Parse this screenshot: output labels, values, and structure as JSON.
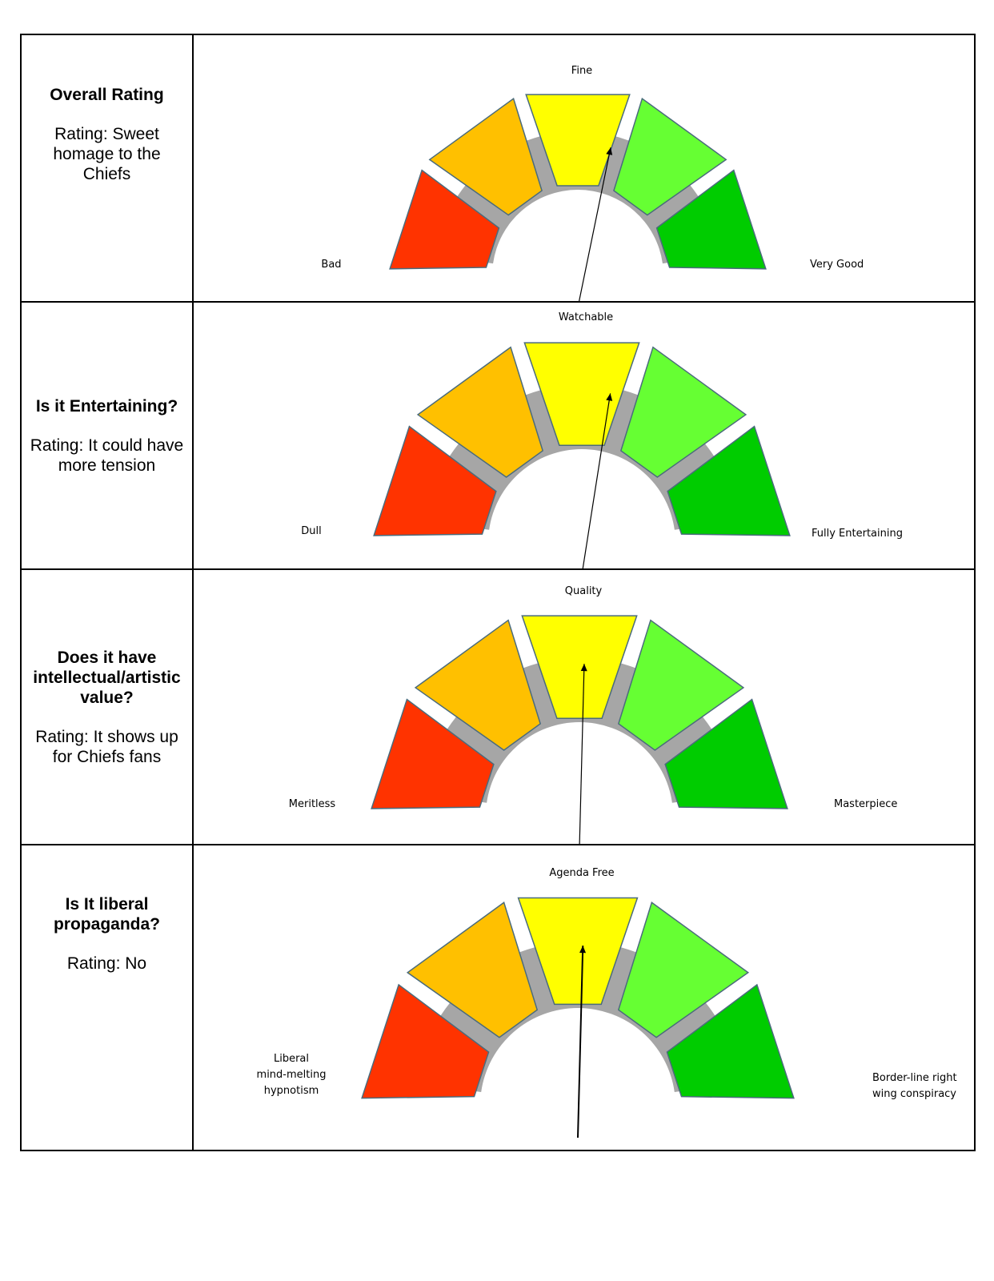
{
  "colors": {
    "border": "#000000",
    "track": "#a6a6a6",
    "segments": [
      "#ff3300",
      "#ffc000",
      "#ffff00",
      "#66ff33",
      "#00cc00"
    ],
    "needle": "#000000"
  },
  "chart_data": [
    {
      "type": "gauge",
      "question": "Overall Rating",
      "rating_text": "Rating: Sweet homage to the Chiefs",
      "scale_labels": {
        "low": "Bad",
        "mid": "Fine",
        "high": "Very Good"
      },
      "scale_range": [
        0,
        1
      ],
      "needle_value": 0.58
    },
    {
      "type": "gauge",
      "question": "Is it Entertaining?",
      "rating_text": "Rating: It could have more tension",
      "scale_labels": {
        "low": "Dull",
        "mid": "Watchable",
        "high": "Fully Entertaining"
      },
      "scale_range": [
        0,
        1
      ],
      "needle_value": 0.56
    },
    {
      "type": "gauge",
      "question": "Does it have intellectual/artistic value?",
      "rating_text": "Rating: It shows up for Chiefs fans",
      "scale_labels": {
        "low": "Meritless",
        "mid": "Quality",
        "high": "Masterpiece"
      },
      "scale_range": [
        0,
        1
      ],
      "needle_value": 0.51
    },
    {
      "type": "gauge",
      "question": "Is It liberal propaganda?",
      "rating_text": "Rating: No",
      "scale_labels": {
        "low": "Liberal\nmind-melting\nhypnotism",
        "mid": "Agenda Free",
        "high": "Border-line right\nwing conspiracy"
      },
      "scale_range": [
        0,
        1
      ],
      "needle_value": 0.51
    }
  ]
}
